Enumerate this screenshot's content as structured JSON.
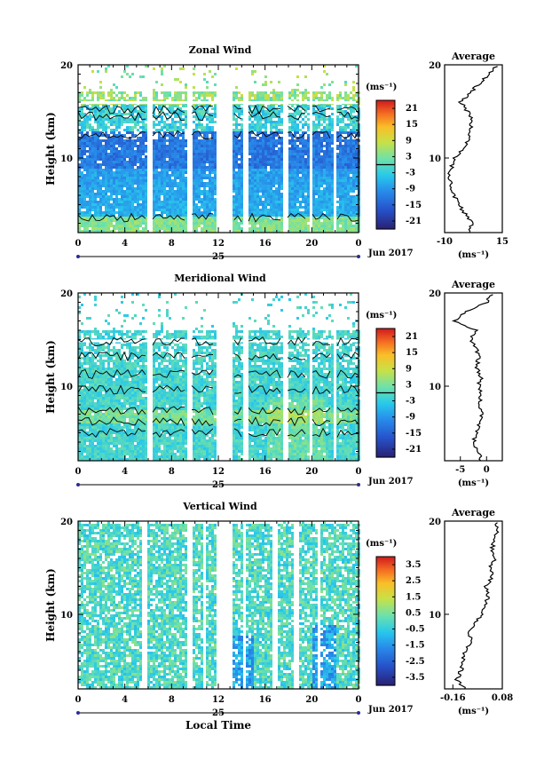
{
  "chart_data": [
    {
      "type": "heatmap",
      "id": "zonal",
      "title": "Zonal Wind",
      "ylabel": "Height (km)",
      "xlabel": "",
      "xlim": [
        0,
        24
      ],
      "ylim": [
        2,
        20
      ],
      "x_ticks": [
        "0",
        "4",
        "8",
        "12",
        "16",
        "20",
        "0"
      ],
      "y_ticks": [
        "10",
        "20"
      ],
      "date_label": "25",
      "month_label": "Jun 2017",
      "colorbar": {
        "unit": "(ms⁻¹)",
        "min": -24,
        "max": 24,
        "tick_values": [
          21,
          15,
          9,
          3,
          -3,
          -9,
          -15,
          -21
        ],
        "tick_labels": [
          "21",
          "15",
          "9",
          "3",
          "-3",
          "-9",
          "-15",
          "-21"
        ],
        "zero_line": true
      },
      "data_gaps_hours": [
        [
          5.8,
          6.2
        ],
        [
          9.2,
          9.7
        ],
        [
          11.8,
          13.1
        ],
        [
          14.1,
          14.4
        ],
        [
          17.5,
          17.8
        ],
        [
          19.6,
          19.9
        ],
        [
          21.7,
          22.0
        ]
      ],
      "average_profile": {
        "title": "Average",
        "xlim": [
          -10,
          15
        ],
        "x_ticks": [
          "-10",
          "15"
        ],
        "y_ticks": [
          "10",
          "20"
        ],
        "unit": "(ms⁻¹)",
        "heights_km": [
          2,
          3,
          4,
          5,
          6,
          7,
          8,
          9,
          10,
          11,
          12,
          13,
          14,
          15,
          16,
          17,
          18,
          19,
          20
        ],
        "values": [
          1,
          2,
          -1,
          -4,
          -6,
          -7,
          -8,
          -7,
          -6,
          -2,
          0,
          1,
          2,
          0,
          -3,
          1,
          5,
          9,
          13
        ]
      }
    },
    {
      "type": "heatmap",
      "id": "meridional",
      "title": "Meridional Wind",
      "ylabel": "Height (km)",
      "xlabel": "",
      "xlim": [
        0,
        24
      ],
      "ylim": [
        2,
        20
      ],
      "x_ticks": [
        "0",
        "4",
        "8",
        "12",
        "16",
        "20",
        "0"
      ],
      "y_ticks": [
        "10",
        "20"
      ],
      "date_label": "25",
      "month_label": "Jun 2017",
      "colorbar": {
        "unit": "(ms⁻¹)",
        "min": -24,
        "max": 24,
        "tick_values": [
          21,
          15,
          9,
          3,
          -3,
          -9,
          -15,
          -21
        ],
        "tick_labels": [
          "21",
          "15",
          "9",
          "3",
          "-3",
          "-9",
          "-15",
          "-21"
        ],
        "zero_line": true
      },
      "data_gaps_hours": [
        [
          5.8,
          6.2
        ],
        [
          9.2,
          9.7
        ],
        [
          11.8,
          13.1
        ],
        [
          14.1,
          14.4
        ],
        [
          17.5,
          17.8
        ],
        [
          19.6,
          19.9
        ],
        [
          21.7,
          22.0
        ]
      ],
      "average_profile": {
        "title": "Average",
        "xlim": [
          -8,
          3
        ],
        "x_ticks": [
          "-5",
          "0"
        ],
        "y_ticks": [
          "10",
          "20"
        ],
        "unit": "(ms⁻¹)",
        "heights_km": [
          2,
          3,
          4,
          5,
          6,
          7,
          8,
          9,
          10,
          11,
          12,
          13,
          14,
          15,
          16,
          17,
          18,
          19,
          20
        ],
        "values": [
          -1,
          -1.5,
          -2.5,
          -2,
          -1.5,
          -1,
          -1.5,
          -1,
          -1.5,
          -1,
          -2,
          -1.5,
          -2,
          -3,
          -2,
          -6,
          -4,
          0,
          1
        ]
      }
    },
    {
      "type": "heatmap",
      "id": "vertical",
      "title": "Vertical Wind",
      "ylabel": "Height (km)",
      "xlabel": "Local Time",
      "xlim": [
        0,
        24
      ],
      "ylim": [
        2,
        20
      ],
      "x_ticks": [
        "0",
        "4",
        "8",
        "12",
        "16",
        "20",
        "0"
      ],
      "y_ticks": [
        "10",
        "20"
      ],
      "date_label": "25",
      "month_label": "Jun 2017",
      "colorbar": {
        "unit": "(ms⁻¹)",
        "min": -4,
        "max": 4,
        "tick_values": [
          3.5,
          2.5,
          1.5,
          0.5,
          -0.5,
          -1.5,
          -2.5,
          -3.5
        ],
        "tick_labels": [
          "3.5",
          "2.5",
          "1.5",
          "0.5",
          "-0.5",
          "-1.5",
          "-2.5",
          "-3.5"
        ],
        "zero_line": false
      },
      "data_gaps_hours": [
        [
          5.4,
          5.7
        ],
        [
          9.2,
          9.6
        ],
        [
          10.6,
          10.9
        ],
        [
          11.7,
          13.1
        ],
        [
          13.9,
          14.2
        ],
        [
          16.6,
          16.9
        ],
        [
          18.4,
          18.7
        ],
        [
          20.4,
          20.7
        ]
      ],
      "average_profile": {
        "title": "Average",
        "xlim": [
          -0.2,
          0.08
        ],
        "x_ticks": [
          "-0.16",
          "0.08"
        ],
        "y_ticks": [
          "10",
          "20"
        ],
        "unit": "(ms⁻¹)",
        "heights_km": [
          2,
          3,
          4,
          5,
          6,
          7,
          8,
          9,
          10,
          11,
          12,
          13,
          14,
          15,
          16,
          17,
          18,
          19,
          20
        ],
        "values": [
          -0.1,
          -0.14,
          -0.12,
          -0.11,
          -0.1,
          -0.07,
          -0.08,
          -0.05,
          -0.02,
          0,
          0.01,
          0.0,
          0.03,
          0.02,
          0.05,
          0.03,
          0.04,
          0.06,
          0.05
        ]
      }
    }
  ]
}
